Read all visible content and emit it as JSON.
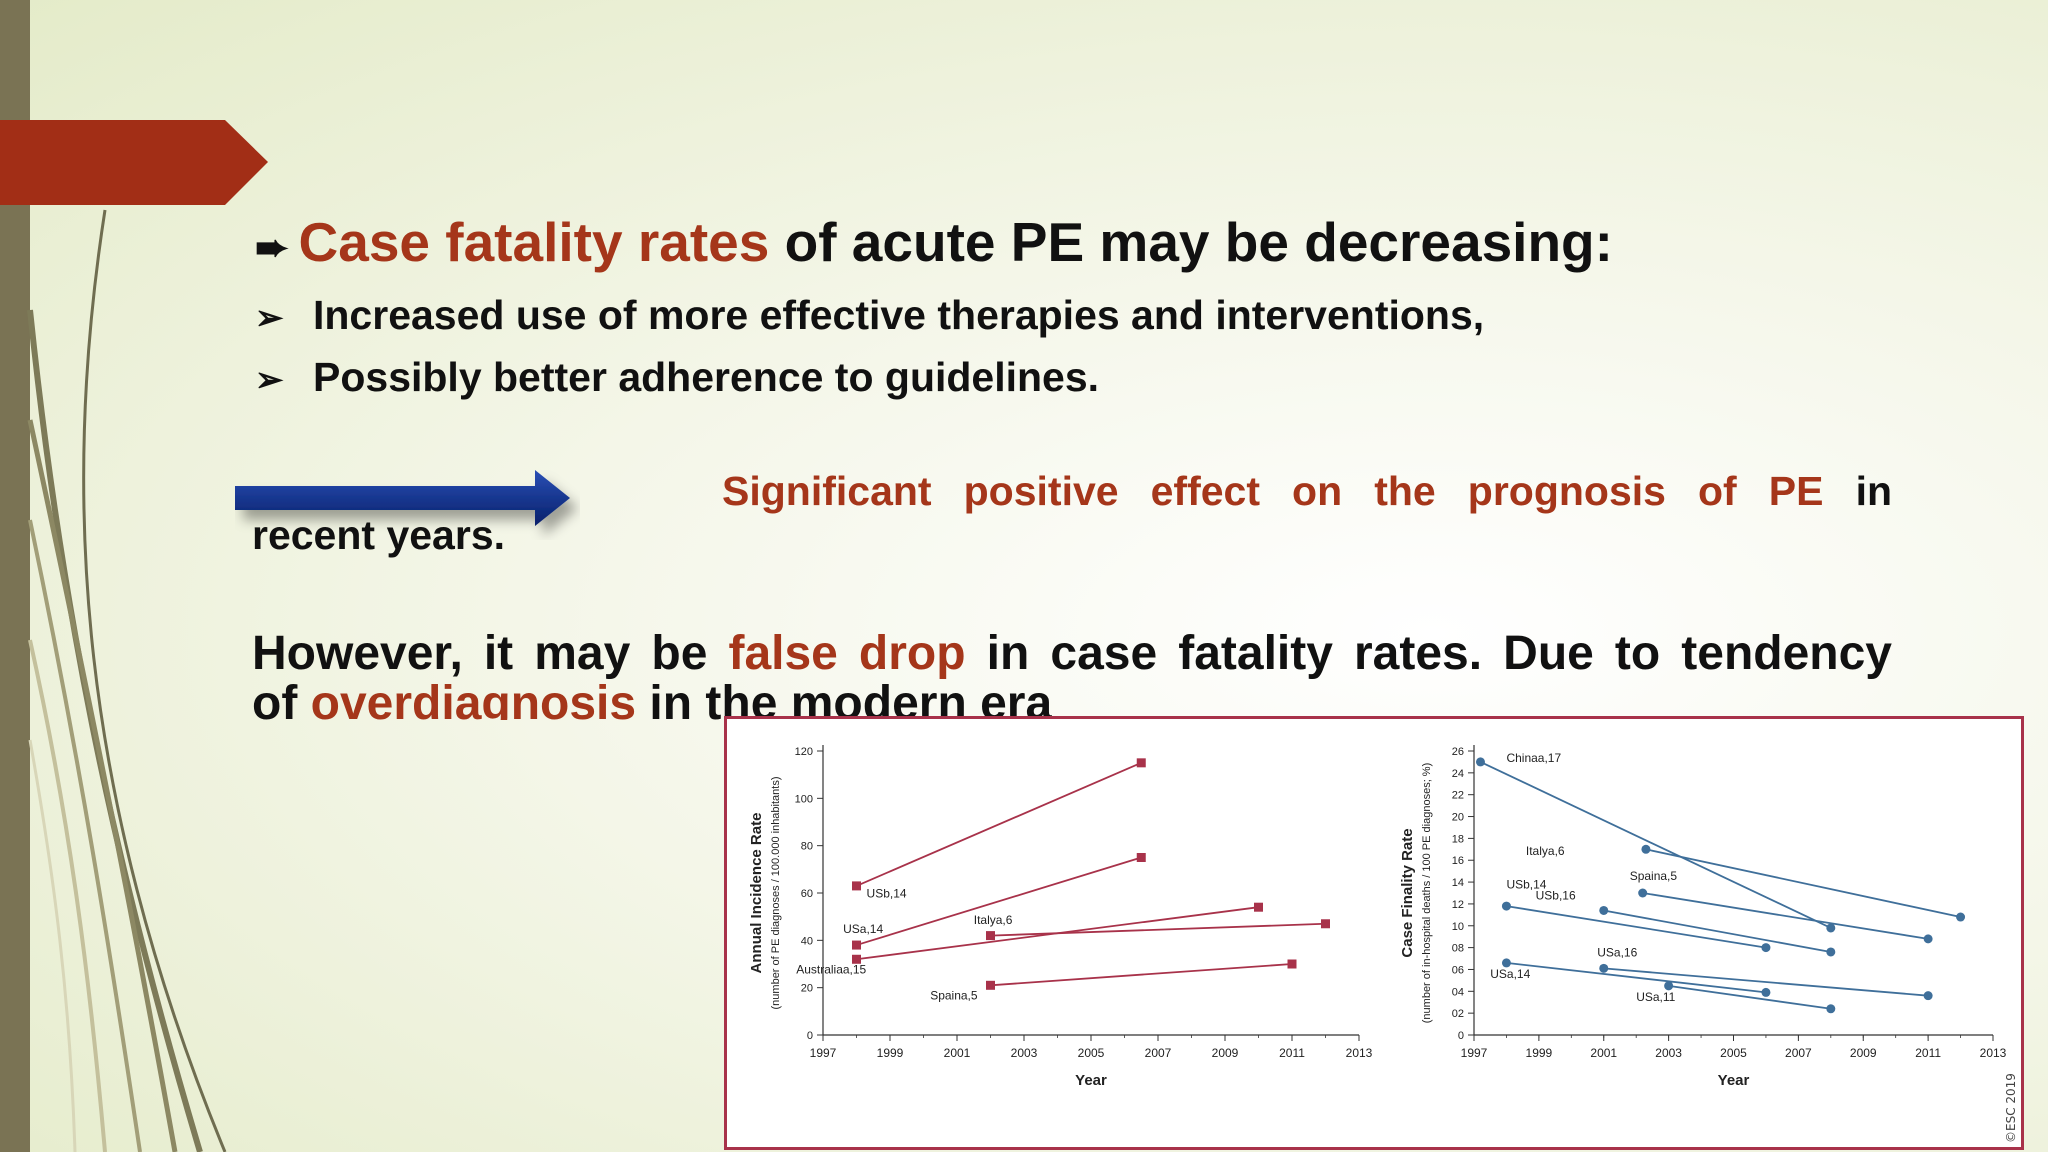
{
  "slide": {
    "title_red": "Case fatality rates",
    "title_rest": " of acute PE may be decreasing:",
    "bullets": [
      "Increased use of more effective therapies and interventions,",
      "Possibly better adherence to guidelines."
    ],
    "effect_red": "Significant positive effect on the prognosis of PE",
    "effect_black": "in",
    "effect_line2": "recent years.",
    "however_a": "However,  it may be ",
    "however_red": "false drop",
    "however_b": " in case fatality rates. Due to tendency",
    "line2_a": "of ",
    "line2_red": "overdiagnosis",
    "line2_b": " in the modern era",
    "colors": {
      "accent_red": "#a5361a",
      "arrow_blue": "#0a2f8f",
      "sidebar": "#7a7354"
    }
  },
  "chart_data": [
    {
      "type": "line",
      "xlabel": "Year",
      "ylabel": "Annual Incidence Rate",
      "ylabel_sub": "(number of PE diagnoses / 100.000 inhabitants)",
      "xlim": [
        1997,
        2013
      ],
      "ylim": [
        0,
        120
      ],
      "xticks": [
        "1997",
        "1999",
        "2001",
        "2003",
        "2005",
        "2007",
        "2009",
        "2011",
        "2013"
      ],
      "yticks": [
        "0",
        "20",
        "40",
        "60",
        "80",
        "100",
        "120"
      ],
      "series": [
        {
          "name": "USb,14",
          "x": [
            1998,
            2006.5
          ],
          "y": [
            63,
            115
          ],
          "label_at": [
            1998.3,
            58
          ]
        },
        {
          "name": "USa,14",
          "x": [
            1998,
            2006.5
          ],
          "y": [
            38,
            75
          ],
          "label_at": [
            1997.6,
            43
          ]
        },
        {
          "name": "Italya,6",
          "x": [
            2002,
            2012
          ],
          "y": [
            42,
            47
          ],
          "label_at": [
            2001.5,
            47
          ]
        },
        {
          "name": "Australiaa,15",
          "x": [
            1998,
            2010
          ],
          "y": [
            32,
            54
          ],
          "label_at": [
            1996.2,
            26
          ]
        },
        {
          "name": "Spaina,5",
          "x": [
            2002,
            2011
          ],
          "y": [
            21,
            30
          ],
          "label_at": [
            2000.2,
            15
          ]
        }
      ]
    },
    {
      "type": "line",
      "xlabel": "Year",
      "ylabel": "Case Finality Rate",
      "ylabel_sub": "(number of in-hospital deaths / 100 PE diagnoses; %)",
      "xlim": [
        1997,
        2013
      ],
      "ylim": [
        0,
        26
      ],
      "xticks": [
        "1997",
        "1999",
        "2001",
        "2003",
        "2005",
        "2007",
        "2009",
        "2011",
        "2013"
      ],
      "yticks": [
        "0",
        "02",
        "04",
        "06",
        "08",
        "10",
        "12",
        "14",
        "16",
        "18",
        "20",
        "22",
        "24",
        "26"
      ],
      "series": [
        {
          "name": "Chinaa,17",
          "x": [
            1997.2,
            2008
          ],
          "y": [
            25,
            9.8
          ],
          "label_at": [
            1998,
            25
          ]
        },
        {
          "name": "Italya,6",
          "x": [
            2002.3,
            2012
          ],
          "y": [
            17,
            10.8
          ],
          "label_at": [
            1998.6,
            16.5
          ]
        },
        {
          "name": "Spaina,5",
          "x": [
            2002.2,
            2011
          ],
          "y": [
            13,
            8.8
          ],
          "label_at": [
            2001.8,
            14.2
          ]
        },
        {
          "name": "USb,14",
          "x": [
            1998,
            2006
          ],
          "y": [
            11.8,
            8
          ],
          "label_at": [
            1998,
            13.4
          ]
        },
        {
          "name": "USb,16",
          "x": [
            2001,
            2008
          ],
          "y": [
            11.4,
            7.6
          ],
          "label_at": [
            1998.9,
            12.4
          ]
        },
        {
          "name": "USa,16",
          "x": [
            2001,
            2011
          ],
          "y": [
            6.1,
            3.6
          ],
          "label_at": [
            2000.8,
            7.2
          ]
        },
        {
          "name": "USa,14",
          "x": [
            1998,
            2006
          ],
          "y": [
            6.6,
            3.9
          ],
          "label_at": [
            1997.5,
            5.2
          ]
        },
        {
          "name": "USa,11",
          "x": [
            2003,
            2008
          ],
          "y": [
            4.5,
            2.4
          ],
          "label_at": [
            2002,
            3.1
          ]
        }
      ]
    }
  ],
  "chart_copyright": "©ESC 2019"
}
